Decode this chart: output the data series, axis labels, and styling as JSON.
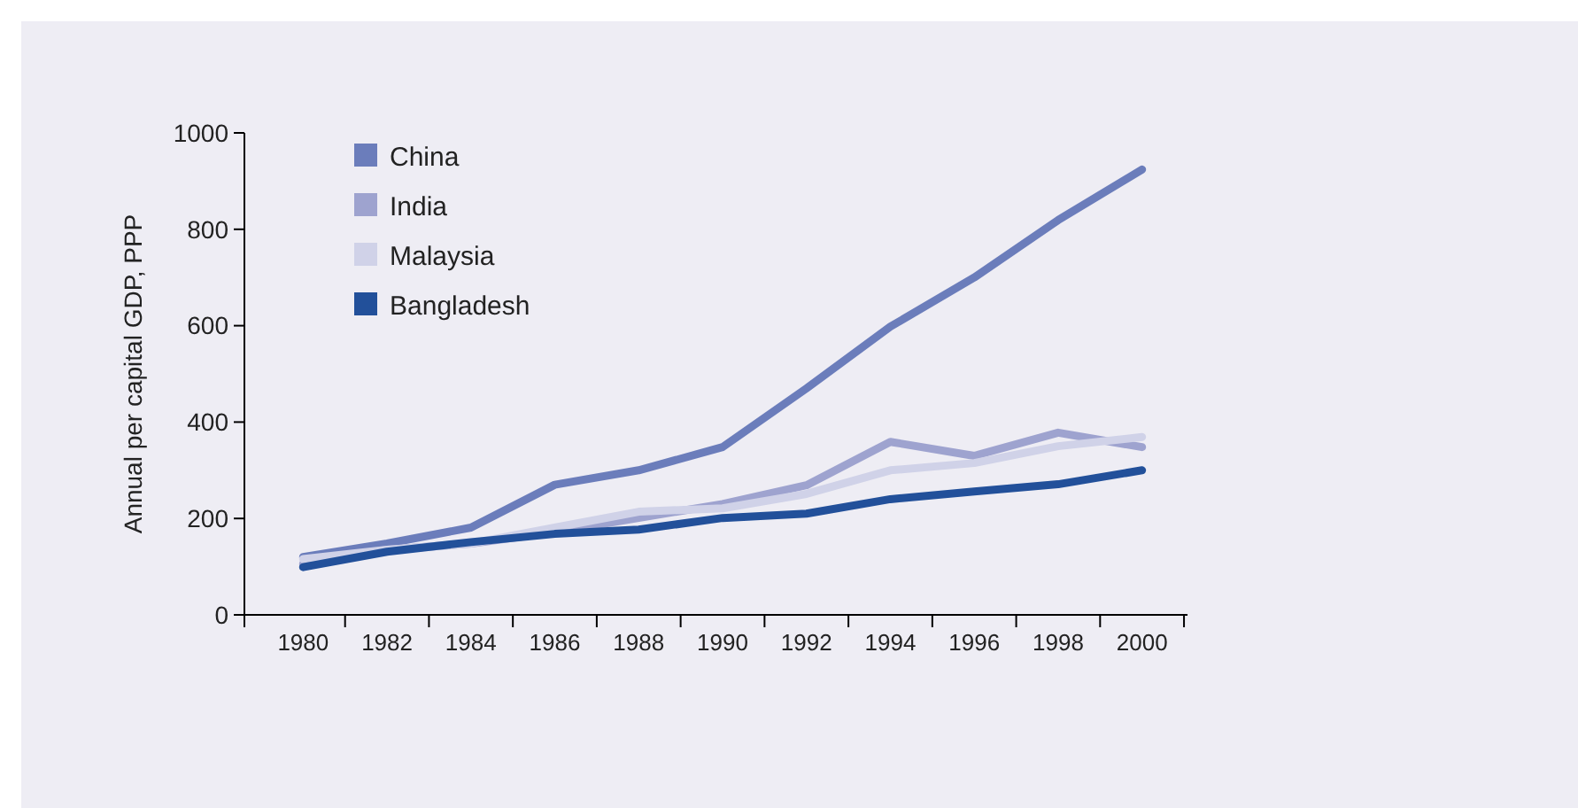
{
  "chart_data": {
    "type": "line",
    "ylabel": "Annual per capital GDP, PPP",
    "categories": [
      "1980",
      "1982",
      "1984",
      "1986",
      "1988",
      "1990",
      "1992",
      "1994",
      "1996",
      "1998",
      "2000"
    ],
    "ylim": [
      0,
      1000
    ],
    "yticks": [
      0,
      200,
      400,
      600,
      800,
      1000
    ],
    "grid": false,
    "legend": "top left",
    "series": [
      {
        "name": "China",
        "color": "#6b7dbb",
        "values": [
          120,
          148,
          181,
          270,
          300,
          348,
          470,
          598,
          700,
          819,
          924
        ]
      },
      {
        "name": "India",
        "color": "#9ea3cf",
        "values": [
          106,
          135,
          148,
          172,
          201,
          230,
          269,
          359,
          330,
          378,
          348
        ]
      },
      {
        "name": "Malaysia",
        "color": "#d0d2e8",
        "values": [
          116,
          135,
          148,
          181,
          214,
          221,
          251,
          300,
          315,
          350,
          369
        ]
      },
      {
        "name": "Bangladesh",
        "color": "#22509a",
        "values": [
          99,
          131,
          151,
          168,
          177,
          201,
          210,
          240,
          256,
          271,
          300
        ]
      }
    ]
  }
}
